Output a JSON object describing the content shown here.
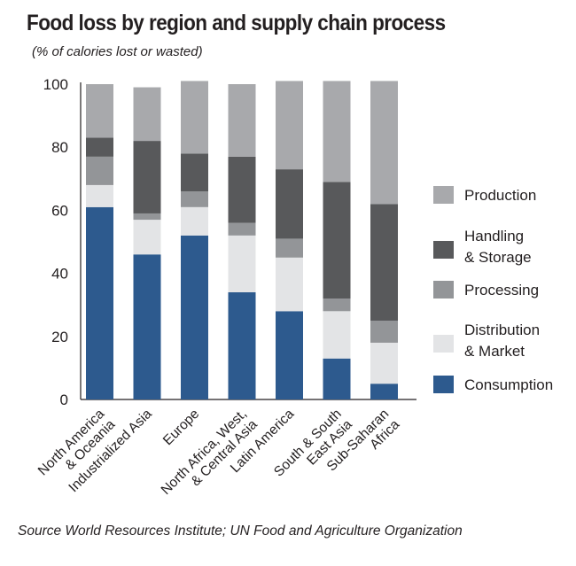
{
  "title": "Food loss by region and supply chain process",
  "subtitle": "(% of calories lost or wasted)",
  "source": "Source World Resources Institute; UN Food and Agriculture Organization",
  "chart_data": {
    "type": "bar",
    "stacked": true,
    "title": "Food loss by region and supply chain process",
    "subtitle": "(% of calories lost or wasted)",
    "xlabel": "",
    "ylabel": "",
    "ylim": [
      0,
      100
    ],
    "yticks": [
      0,
      20,
      40,
      60,
      80,
      100
    ],
    "grid": false,
    "legend_position": "right",
    "categories": [
      [
        "North America",
        "& Oceania"
      ],
      [
        "Industrialized Asia"
      ],
      [
        "Europe"
      ],
      [
        "North Africa, West,",
        "& Central Asia"
      ],
      [
        "Latin America"
      ],
      [
        "South & South",
        "East Asia"
      ],
      [
        "Sub-Saharan",
        "Africa"
      ]
    ],
    "series": [
      {
        "name": [
          "Consumption"
        ],
        "color": "#2d5a8e",
        "values": [
          61,
          46,
          52,
          34,
          28,
          13,
          5
        ]
      },
      {
        "name": [
          "Distribution",
          "& Market"
        ],
        "color": "#e3e4e6",
        "values": [
          7,
          11,
          9,
          18,
          17,
          15,
          13
        ]
      },
      {
        "name": [
          "Processing"
        ],
        "color": "#939598",
        "values": [
          9,
          2,
          5,
          4,
          6,
          4,
          7
        ]
      },
      {
        "name": [
          "Handling",
          "& Storage"
        ],
        "color": "#58595b",
        "values": [
          6,
          23,
          12,
          21,
          22,
          37,
          37
        ]
      },
      {
        "name": [
          "Production"
        ],
        "color": "#a8a9ac",
        "values": [
          17,
          17,
          23,
          23,
          28,
          32,
          39
        ]
      }
    ],
    "legend_order": [
      4,
      3,
      2,
      1,
      0
    ]
  }
}
